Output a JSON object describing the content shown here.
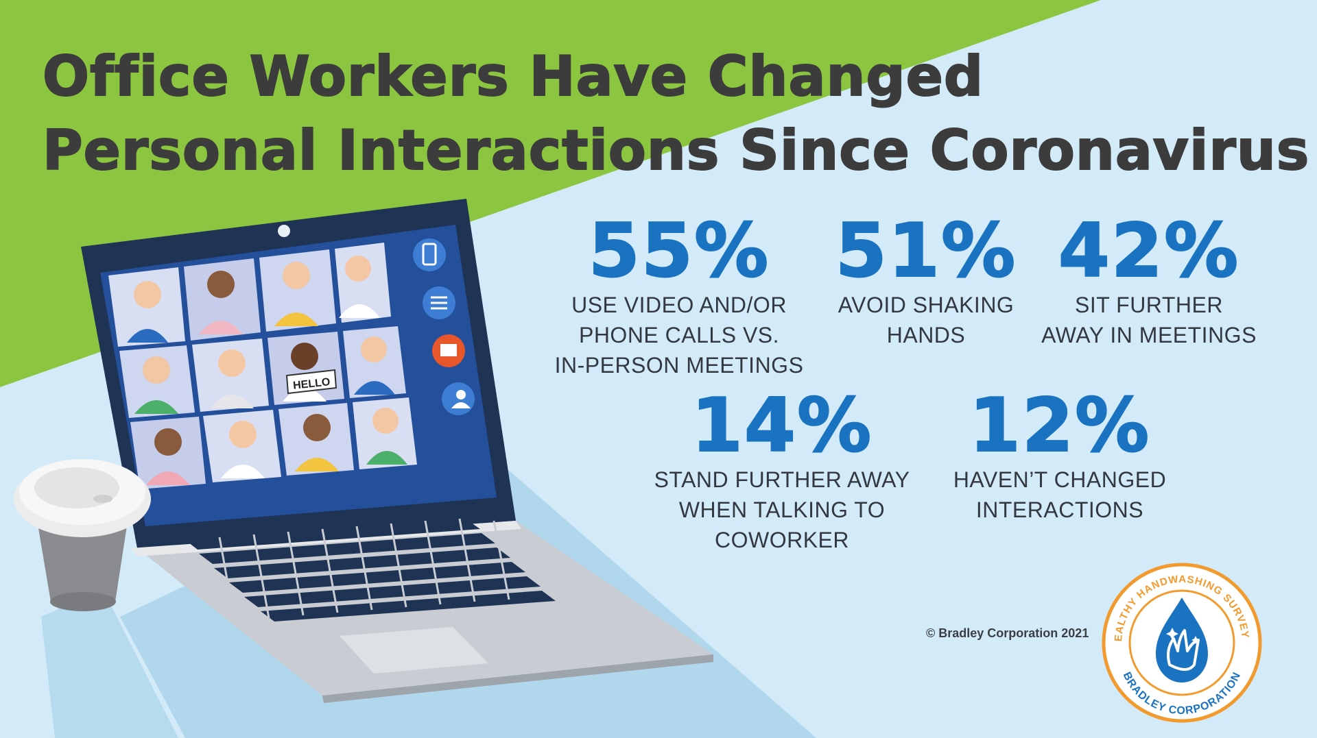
{
  "title": {
    "line1": "Office Workers Have Changed",
    "line2": "Personal Interactions Since Coronavirus"
  },
  "stats": [
    {
      "percent": "55%",
      "lines": [
        "USE VIDEO AND/OR",
        "PHONE CALLS VS.",
        "IN-PERSON MEETINGS"
      ]
    },
    {
      "percent": "51%",
      "lines": [
        "AVOID SHAKING",
        "HANDS"
      ]
    },
    {
      "percent": "42%",
      "lines": [
        "SIT FURTHER",
        "AWAY IN MEETINGS"
      ]
    },
    {
      "percent": "14%",
      "lines": [
        "STAND FURTHER AWAY",
        "WHEN TALKING TO",
        "COWORKER"
      ]
    },
    {
      "percent": "12%",
      "lines": [
        "HAVEN’T CHANGED",
        "INTERACTIONS"
      ]
    }
  ],
  "screen_sign": "HELLO",
  "copyright": "© Bradley Corporation 2021",
  "badge": {
    "top_text": "HEALTHY HANDWASHING SURVEY™",
    "bottom_text": "BRADLEY CORPORATION",
    "icon": "water-drop-hands-icon"
  },
  "colors": {
    "green": "#8cc540",
    "light_blue": "#d3ebf8",
    "stat_blue": "#1a73c0",
    "title_gray": "#3c3c3c",
    "badge_orange": "#f29a2e"
  }
}
